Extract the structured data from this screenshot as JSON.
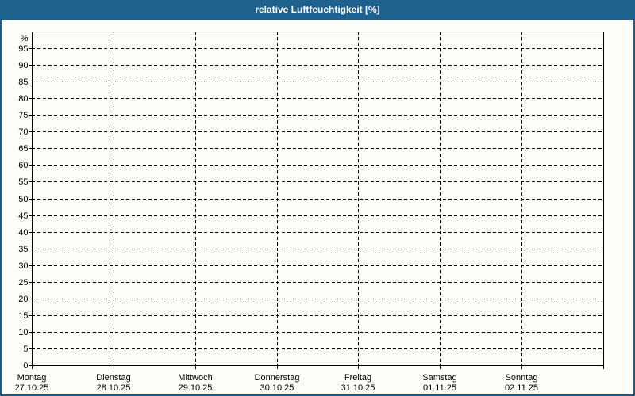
{
  "window": {
    "title": "relative Luftfeuchtigkeit [%]"
  },
  "colors": {
    "titlebar_bg": "#1F618E",
    "titlebar_text": "#FFFFFF",
    "page_bg": "#FCFDF7",
    "page_border": "#1C5A86",
    "grid_line": "#000000",
    "axis_text": "#000000"
  },
  "chart_data": {
    "type": "line",
    "title": "relative Luftfeuchtigkeit [%]",
    "ylabel": "%",
    "y_unit_label": "%",
    "ylim": [
      0,
      100
    ],
    "ytick_step": 5,
    "y_ticks": [
      0,
      5,
      10,
      15,
      20,
      25,
      30,
      35,
      40,
      45,
      50,
      55,
      60,
      65,
      70,
      75,
      80,
      85,
      90,
      95
    ],
    "grid": "dashed",
    "legend": "none",
    "x_categories": [
      {
        "day": "Montag",
        "date": "27.10.25"
      },
      {
        "day": "Dienstag",
        "date": "28.10.25"
      },
      {
        "day": "Mittwoch",
        "date": "29.10.25"
      },
      {
        "day": "Donnerstag",
        "date": "30.10.25"
      },
      {
        "day": "Freitag",
        "date": "31.10.25"
      },
      {
        "day": "Samstag",
        "date": "01.11.25"
      },
      {
        "day": "Sonntag",
        "date": "02.11.25"
      }
    ],
    "series": []
  }
}
